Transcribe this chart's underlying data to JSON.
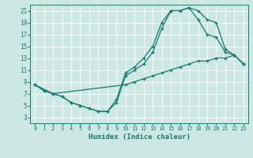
{
  "xlabel": "Humidex (Indice chaleur)",
  "bg_color": "#cce8e5",
  "grid_color": "#ffffff",
  "line_color": "#1a7a6e",
  "xlim": [
    -0.5,
    23.5
  ],
  "ylim": [
    2,
    22
  ],
  "xticks": [
    0,
    1,
    2,
    3,
    4,
    5,
    6,
    7,
    8,
    9,
    10,
    11,
    12,
    13,
    14,
    15,
    16,
    17,
    18,
    19,
    20,
    21,
    22,
    23
  ],
  "yticks": [
    3,
    5,
    7,
    9,
    11,
    13,
    15,
    17,
    19,
    21
  ],
  "curve1_x": [
    0,
    1,
    2,
    3,
    4,
    5,
    6,
    7,
    8,
    9,
    10,
    11,
    12,
    13,
    14,
    15,
    16,
    17,
    18,
    19,
    20,
    21,
    22,
    23
  ],
  "curve1_y": [
    8.5,
    7.5,
    7.0,
    6.5,
    5.5,
    5.0,
    4.5,
    4.0,
    4.0,
    5.5,
    10.0,
    11.0,
    12.0,
    14.0,
    18.0,
    21.0,
    21.0,
    21.5,
    19.5,
    17.0,
    16.5,
    14.0,
    13.5,
    12.0
  ],
  "curve2_x": [
    0,
    1,
    2,
    3,
    4,
    5,
    6,
    7,
    8,
    9,
    10,
    11,
    12,
    13,
    14,
    15,
    16,
    17,
    18,
    19,
    20,
    21,
    22,
    23
  ],
  "curve2_y": [
    8.5,
    7.5,
    7.0,
    6.5,
    5.5,
    5.0,
    4.5,
    4.0,
    4.0,
    6.0,
    10.5,
    11.5,
    13.0,
    15.0,
    19.0,
    21.0,
    21.0,
    21.5,
    21.0,
    19.5,
    19.0,
    14.5,
    13.5,
    12.0
  ],
  "curve3_x": [
    0,
    2,
    10,
    11,
    12,
    13,
    14,
    15,
    16,
    17,
    18,
    19,
    20,
    21,
    22,
    23
  ],
  "curve3_y": [
    8.5,
    7.0,
    8.5,
    9.0,
    9.5,
    10.0,
    10.5,
    11.0,
    11.5,
    12.0,
    12.5,
    12.5,
    13.0,
    13.0,
    13.5,
    12.0
  ]
}
